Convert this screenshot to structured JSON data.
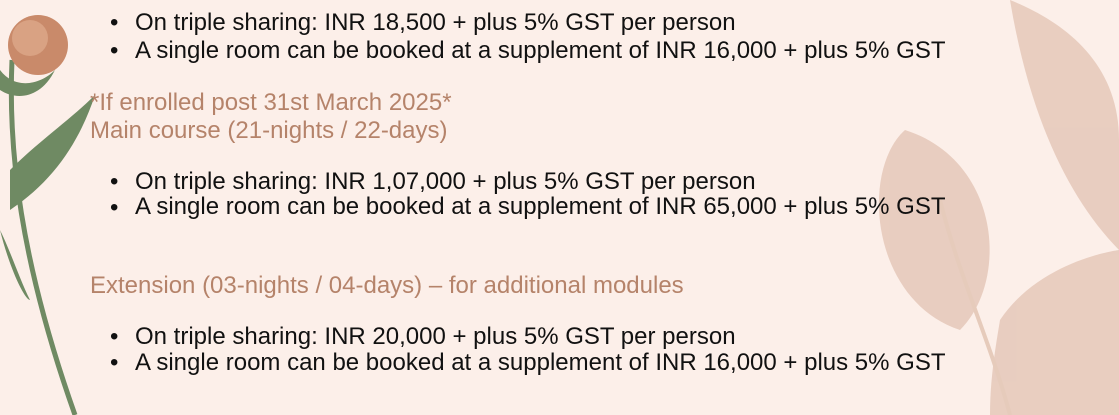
{
  "sections": [
    {
      "bullets": [
        "On triple sharing: INR 18,500 + plus 5% GST per person",
        "A single room can be booked at a supplement of INR 16,000 + plus 5% GST"
      ]
    },
    {
      "headings": [
        "*If enrolled post 31st March 2025*",
        "Main course (21-nights / 22-days)"
      ],
      "bullets": [
        "On triple sharing: INR 1,07,000 + plus 5% GST per person",
        "A single room can be booked at a supplement of INR 65,000 + plus 5% GST"
      ]
    },
    {
      "headings": [
        "Extension (03-nights / 04-days) – for additional modules"
      ],
      "bullets": [
        "On triple sharing: INR 20,000 + plus 5% GST per person",
        "A single room can be booked at a supplement of INR 16,000 + plus 5% GST"
      ]
    }
  ]
}
